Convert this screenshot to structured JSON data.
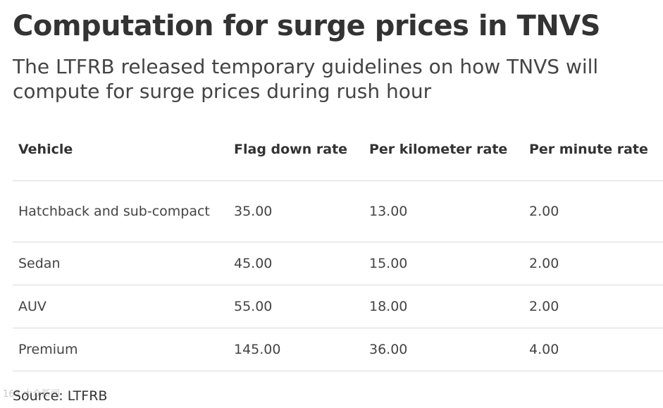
{
  "title": "Computation for surge prices in TNVS",
  "subtitle": "The LTFRB released temporary guidelines on how TNVS will compute for surge prices during rush hour",
  "table": {
    "headers": {
      "vehicle": "Vehicle",
      "flag_down": "Flag down rate",
      "per_km": "Per kilometer rate",
      "per_minute": "Per minute rate"
    },
    "rows": [
      {
        "vehicle": "Hatchback and sub-compact",
        "flag_down": "35.00",
        "per_km": "13.00",
        "per_minute": "2.00"
      },
      {
        "vehicle": "Sedan",
        "flag_down": "45.00",
        "per_km": "15.00",
        "per_minute": "2.00"
      },
      {
        "vehicle": "AUV",
        "flag_down": "55.00",
        "per_km": "18.00",
        "per_minute": "2.00"
      },
      {
        "vehicle": "Premium",
        "flag_down": "145.00",
        "per_km": "36.00",
        "per_minute": "4.00"
      }
    ]
  },
  "source": "Source: LTFRB",
  "watermark": "163 大众新闻"
}
